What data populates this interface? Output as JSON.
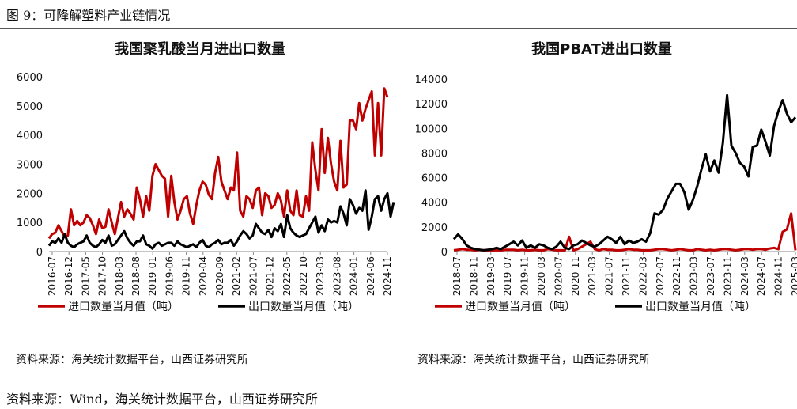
{
  "figure": {
    "title": "图 9：可降解塑料产业链情况",
    "source": "资料来源：Wind，海关统计数据平台，山西证券研究所"
  },
  "chart_data": [
    {
      "type": "line",
      "title": "我国聚乳酸当月进出口数量",
      "source": "资料来源：海关统计数据平台，山西证券研究所",
      "ylim": [
        0,
        6000
      ],
      "yticks": [
        "0",
        "1000",
        "2000",
        "3000",
        "4000",
        "5000",
        "6000"
      ],
      "xticks": [
        "2016-07",
        "2016-12",
        "2017-05",
        "2017-10",
        "2018-03",
        "2018-08",
        "2019-01",
        "2019-06",
        "2019-11",
        "2020-04",
        "2020-09",
        "2021-02",
        "2021-07",
        "2021-12",
        "2022-05",
        "2022-10",
        "2023-03",
        "2023-08",
        "2024-01",
        "2024-06",
        "2024-11"
      ],
      "legend_position": "bottom",
      "series": [
        {
          "name": "进口数量当月值（吨）",
          "color": "#c00000",
          "values": [
            450,
            600,
            650,
            900,
            700,
            500,
            550,
            1450,
            900,
            1050,
            900,
            1000,
            1250,
            1150,
            900,
            600,
            1100,
            800,
            850,
            1450,
            1000,
            600,
            1150,
            1700,
            1200,
            1450,
            1300,
            1100,
            2200,
            1800,
            1200,
            1900,
            1400,
            2600,
            3000,
            2800,
            2600,
            2500,
            1200,
            2600,
            1700,
            1100,
            1400,
            1800,
            1900,
            1300,
            950,
            1600,
            2100,
            2400,
            2300,
            1950,
            1800,
            2700,
            3250,
            2400,
            2100,
            1800,
            2200,
            2100,
            3400,
            1400,
            1200,
            1900,
            1800,
            1500,
            2100,
            2200,
            1250,
            2000,
            1900,
            1500,
            1600,
            2000,
            1750,
            1200,
            2100,
            1400,
            1250,
            2100,
            1250,
            1200,
            1900,
            1400,
            3750,
            2800,
            2100,
            4200,
            2700,
            3900,
            3000,
            2400,
            2100,
            3800,
            2200,
            2300,
            4500,
            4500,
            4200,
            5100,
            4500,
            4900,
            5200,
            5500,
            3300,
            5100,
            3300,
            5600,
            5300
          ]
        },
        {
          "name": "出口数量当月值（吨）",
          "color": "#000000",
          "values": [
            200,
            350,
            300,
            450,
            300,
            600,
            300,
            200,
            150,
            250,
            300,
            350,
            550,
            300,
            200,
            150,
            250,
            400,
            300,
            550,
            200,
            250,
            400,
            550,
            700,
            450,
            300,
            200,
            350,
            350,
            550,
            250,
            200,
            100,
            250,
            300,
            200,
            250,
            300,
            300,
            200,
            350,
            250,
            200,
            150,
            200,
            250,
            150,
            300,
            400,
            200,
            150,
            250,
            300,
            400,
            250,
            300,
            300,
            400,
            200,
            350,
            550,
            700,
            600,
            450,
            550,
            950,
            800,
            650,
            600,
            750,
            500,
            800,
            700,
            950,
            500,
            1250,
            800,
            650,
            550,
            500,
            550,
            600,
            800,
            1000,
            1200,
            650,
            900,
            700,
            1100,
            1000,
            1050,
            1000,
            1550,
            1300,
            900,
            1800,
            1600,
            1300,
            1500,
            1400,
            2100,
            750,
            1200,
            1800,
            1900,
            1400,
            1800,
            2000,
            1200,
            1700
          ]
        }
      ]
    },
    {
      "type": "line",
      "title": "我国PBAT进出口数量",
      "source": "资料来源：海关统计数据平台，山西证券研究所",
      "ylim": [
        0,
        14000
      ],
      "yticks": [
        "0",
        "2000",
        "4000",
        "6000",
        "8000",
        "10000",
        "12000",
        "14000"
      ],
      "xticks": [
        "2018-07",
        "2018-11",
        "2019-03",
        "2019-07",
        "2019-11",
        "2020-03",
        "2020-07",
        "2020-11",
        "2021-03",
        "2021-07",
        "2021-11",
        "2022-03",
        "2022-07",
        "2022-11",
        "2023-03",
        "2023-07",
        "2023-11",
        "2024-03",
        "2024-07",
        "2024-11",
        "2025-03"
      ],
      "legend_position": "bottom",
      "series": [
        {
          "name": "进口数量当月值（吨）",
          "color": "#c00000",
          "values": [
            100,
            150,
            200,
            150,
            150,
            100,
            150,
            100,
            100,
            100,
            100,
            100,
            150,
            150,
            150,
            100,
            150,
            100,
            100,
            150,
            100,
            100,
            200,
            150,
            100,
            100,
            100,
            1200,
            100,
            200,
            400,
            600,
            800,
            200,
            100,
            200,
            150,
            150,
            100,
            100,
            150,
            200,
            150,
            150,
            100,
            100,
            100,
            150,
            200,
            200,
            150,
            100,
            150,
            200,
            150,
            100,
            100,
            200,
            150,
            100,
            150,
            100,
            150,
            200,
            200,
            150,
            100,
            150,
            200,
            200,
            150,
            200,
            200,
            150,
            250,
            300,
            200,
            1600,
            1800,
            3100,
            100
          ]
        },
        {
          "name": "出口数量当月值（吨）",
          "color": "#000000",
          "values": [
            1000,
            1400,
            1000,
            500,
            300,
            200,
            150,
            100,
            150,
            200,
            300,
            200,
            400,
            600,
            800,
            500,
            900,
            300,
            500,
            300,
            600,
            500,
            300,
            200,
            400,
            800,
            300,
            200,
            500,
            600,
            900,
            700,
            500,
            400,
            600,
            900,
            1200,
            1000,
            700,
            1200,
            600,
            900,
            700,
            800,
            1000,
            800,
            1500,
            3100,
            3000,
            3400,
            4300,
            4900,
            5500,
            5500,
            4800,
            3400,
            4200,
            5300,
            6700,
            7900,
            6500,
            7400,
            6400,
            8800,
            12700,
            8600,
            8000,
            7200,
            6900,
            6100,
            8500,
            8600,
            9900,
            8900,
            7800,
            10200,
            11400,
            12300,
            11200,
            10500,
            10900
          ]
        }
      ]
    }
  ]
}
